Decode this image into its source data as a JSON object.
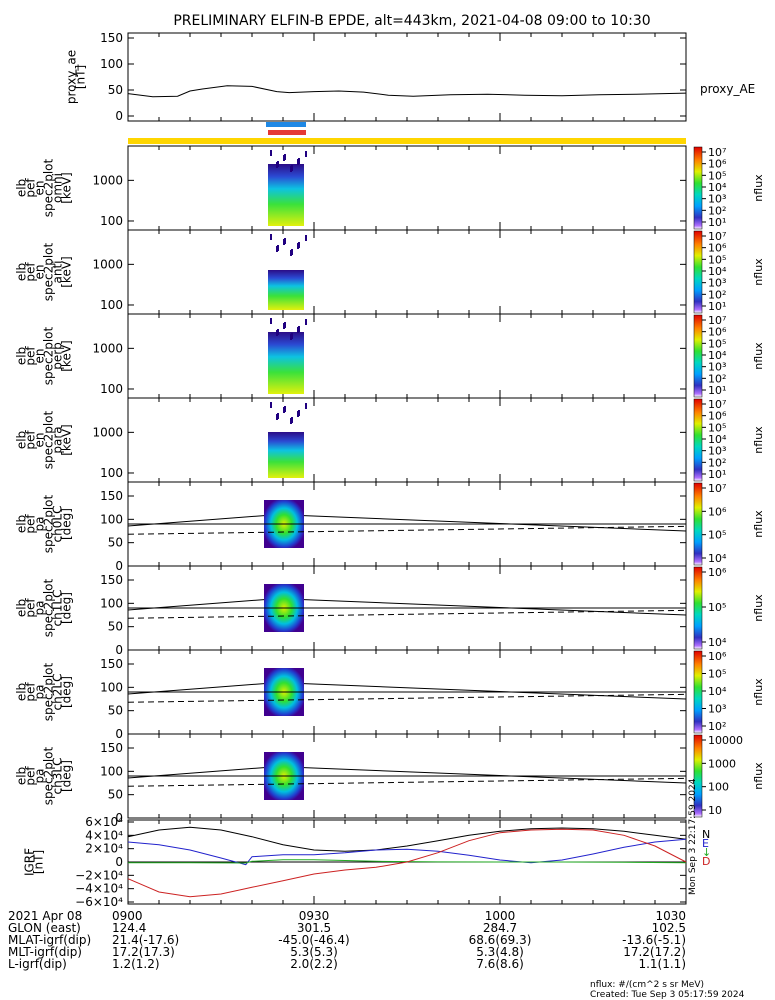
{
  "title": "PRELIMINARY ELFIN-B EPDE, alt=443km, 2021-04-08 09:00 to 10:30",
  "chart_data": {
    "type": "line",
    "time_axis": {
      "start": "09:00",
      "end": "10:30",
      "major_ticks": [
        "0900",
        "0930",
        "1000",
        "1030"
      ]
    },
    "panels": [
      {
        "id": "proxy_ae",
        "ylabel": [
          "proxy_ae",
          "[nT]"
        ],
        "ylim": [
          0,
          150
        ],
        "yticks": [
          "0",
          "50",
          "100",
          "150"
        ],
        "series": [
          {
            "name": "proxy_AE",
            "x": [
              "09:00",
              "09:04",
              "09:08",
              "09:10",
              "09:12",
              "09:14",
              "09:16",
              "09:20",
              "09:24",
              "09:26",
              "09:30",
              "09:34",
              "09:38",
              "09:42",
              "09:46",
              "09:52",
              "09:58",
              "10:04",
              "10:10",
              "10:16",
              "10:22",
              "10:30"
            ],
            "y": [
              43,
              37,
              38,
              48,
              52,
              55,
              58,
              57,
              47,
              45,
              47,
              48,
              46,
              40,
              38,
              41,
              42,
              40,
              39,
              41,
              42,
              44
            ]
          }
        ]
      },
      {
        "id": "spec_omni",
        "type": "heatmap",
        "ylabel": [
          "elb",
          "pef",
          "en",
          "spec2plot",
          "omni",
          "[keV]"
        ],
        "yscale": "log",
        "yticks": [
          "100",
          "1000"
        ],
        "colorbar": {
          "label": "nflux",
          "ticks": [
            "10¹",
            "10²",
            "10³",
            "10⁴",
            "10⁵",
            "10⁶",
            "10⁷"
          ]
        }
      },
      {
        "id": "spec_anti",
        "type": "heatmap",
        "ylabel": [
          "elb",
          "pef",
          "en",
          "spec2plot",
          "anti",
          "[keV]"
        ],
        "yscale": "log",
        "yticks": [
          "100",
          "1000"
        ],
        "colorbar": {
          "label": "nflux",
          "ticks": [
            "10¹",
            "10²",
            "10³",
            "10⁴",
            "10⁵",
            "10⁶",
            "10⁷"
          ]
        }
      },
      {
        "id": "spec_perp",
        "type": "heatmap",
        "ylabel": [
          "elb",
          "pef",
          "en",
          "spec2plot",
          "perp",
          "[keV]"
        ],
        "yscale": "log",
        "yticks": [
          "100",
          "1000"
        ],
        "colorbar": {
          "label": "nflux",
          "ticks": [
            "10¹",
            "10²",
            "10³",
            "10⁴",
            "10⁵",
            "10⁶",
            "10⁷"
          ]
        }
      },
      {
        "id": "spec_para",
        "type": "heatmap",
        "ylabel": [
          "elb",
          "pef",
          "en",
          "spec2plot",
          "para",
          "[keV]"
        ],
        "yscale": "log",
        "yticks": [
          "100",
          "1000"
        ],
        "colorbar": {
          "label": "nflux",
          "ticks": [
            "10¹",
            "10²",
            "10³",
            "10⁴",
            "10⁵",
            "10⁶",
            "10⁷"
          ]
        }
      },
      {
        "id": "pa_ch0",
        "type": "heatmap",
        "ylabel": [
          "elb",
          "pef",
          "pa",
          "spec2plot",
          "ch0LC",
          "[deg]"
        ],
        "ylim": [
          0,
          180
        ],
        "yticks": [
          "0",
          "50",
          "100",
          "150"
        ],
        "colorbar": {
          "label": "nflux",
          "ticks": [
            "10⁴",
            "10⁵",
            "10⁶",
            "10⁷"
          ]
        }
      },
      {
        "id": "pa_ch1",
        "type": "heatmap",
        "ylabel": [
          "elb",
          "pef",
          "pa",
          "spec2plot",
          "ch1LC",
          "[deg]"
        ],
        "ylim": [
          0,
          180
        ],
        "yticks": [
          "0",
          "50",
          "100",
          "150"
        ],
        "colorbar": {
          "label": "nflux",
          "ticks": [
            "10⁴",
            "10⁵",
            "10⁶"
          ]
        }
      },
      {
        "id": "pa_ch2",
        "type": "heatmap",
        "ylabel": [
          "elb",
          "pef",
          "pa",
          "spec2plot",
          "ch2LC",
          "[deg]"
        ],
        "ylim": [
          0,
          180
        ],
        "yticks": [
          "0",
          "50",
          "100",
          "150"
        ],
        "colorbar": {
          "label": "nflux",
          "ticks": [
            "10²",
            "10³",
            "10⁴",
            "10⁵",
            "10⁶"
          ]
        }
      },
      {
        "id": "pa_ch3",
        "type": "heatmap",
        "ylabel": [
          "elb",
          "pef",
          "pa",
          "spec2plot",
          "ch3LC",
          "[deg]"
        ],
        "ylim": [
          0,
          180
        ],
        "yticks": [
          "0",
          "50",
          "100",
          "150"
        ],
        "colorbar": {
          "label": "nflux",
          "ticks": [
            "10",
            "100",
            "1000",
            "10000"
          ]
        }
      },
      {
        "id": "igrf",
        "ylabel": [
          "IGRF",
          "[nT]"
        ],
        "ylim": [
          -60000,
          60000
        ],
        "yticks": [
          "−6×10⁴",
          "−4×10⁴",
          "−2×10⁴",
          "0",
          "2×10⁴",
          "4×10⁴",
          "6×10⁴"
        ],
        "series": [
          {
            "name": "N",
            "color": "#000000",
            "x": [
              "09:00",
              "09:05",
              "09:10",
              "09:15",
              "09:20",
              "09:25",
              "09:30",
              "09:35",
              "09:40",
              "09:45",
              "09:50",
              "09:55",
              "10:00",
              "10:05",
              "10:10",
              "10:15",
              "10:20",
              "10:25",
              "10:30"
            ],
            "y": [
              38000,
              48000,
              52000,
              48000,
              38000,
              26000,
              18000,
              16000,
              18000,
              24000,
              32000,
              40000,
              46000,
              50000,
              51000,
              50000,
              46000,
              40000,
              34000
            ]
          },
          {
            "name": "E",
            "color": "#2222cc",
            "x": [
              "09:00",
              "09:05",
              "09:10",
              "09:15",
              "09:19",
              "09:20",
              "09:25",
              "09:30",
              "09:35",
              "09:40",
              "09:45",
              "09:50",
              "09:55",
              "10:00",
              "10:05",
              "10:10",
              "10:15",
              "10:20",
              "10:25",
              "10:30"
            ],
            "y": [
              30000,
              26000,
              18000,
              6000,
              -4000,
              8000,
              11000,
              11000,
              14000,
              18000,
              19000,
              16000,
              10000,
              3000,
              -1000,
              3000,
              12000,
              22000,
              30000,
              34000
            ]
          },
          {
            "name": "↓",
            "color": "#22aa22",
            "x": [
              "09:00",
              "09:10",
              "09:19",
              "09:20",
              "09:25",
              "09:30",
              "09:40",
              "09:50",
              "10:00",
              "10:10",
              "10:20",
              "10:30"
            ],
            "y": [
              -1000,
              -1000,
              -1500,
              1000,
              3500,
              3500,
              1000,
              200,
              0,
              0,
              -500,
              -1000
            ]
          },
          {
            "name": "D",
            "color": "#cc2222",
            "x": [
              "09:00",
              "09:05",
              "09:10",
              "09:15",
              "09:20",
              "09:25",
              "09:30",
              "09:35",
              "09:40",
              "09:45",
              "09:50",
              "09:55",
              "10:00",
              "10:05",
              "10:10",
              "10:15",
              "10:20",
              "10:25",
              "10:30"
            ],
            "y": [
              -25000,
              -45000,
              -52000,
              -48000,
              -38000,
              -28000,
              -18000,
              -12000,
              -8000,
              0,
              14000,
              32000,
              44000,
              48000,
              49000,
              48000,
              40000,
              24000,
              0
            ]
          }
        ]
      }
    ]
  },
  "side_timestamp": "Mon Sep  3 22:17:59 2024",
  "footer": {
    "rows": [
      {
        "label": "2021 Apr 08",
        "values": [
          "0900",
          "0930",
          "1000",
          "1030"
        ]
      },
      {
        "label": "GLON (east)",
        "values": [
          "124.4",
          "301.5",
          "284.7",
          "102.5"
        ]
      },
      {
        "label": "MLAT-igrf(dip)",
        "values": [
          "21.4(-17.6)",
          "-45.0(-46.4)",
          "68.6(69.3)",
          "-13.6(-5.1)"
        ]
      },
      {
        "label": "MLT-igrf(dip)",
        "values": [
          "17.2(17.3)",
          "5.3(5.3)",
          "5.3(4.8)",
          "17.2(17.2)"
        ]
      },
      {
        "label": "L-igrf(dip)",
        "values": [
          "1.2(1.2)",
          "2.0(2.2)",
          "7.6(8.6)",
          "1.1(1.1)"
        ]
      }
    ],
    "units_note": "nflux: #/(cm^2 s sr MeV)",
    "created": "Created: Tue Sep  3 05:17:59 2024"
  }
}
